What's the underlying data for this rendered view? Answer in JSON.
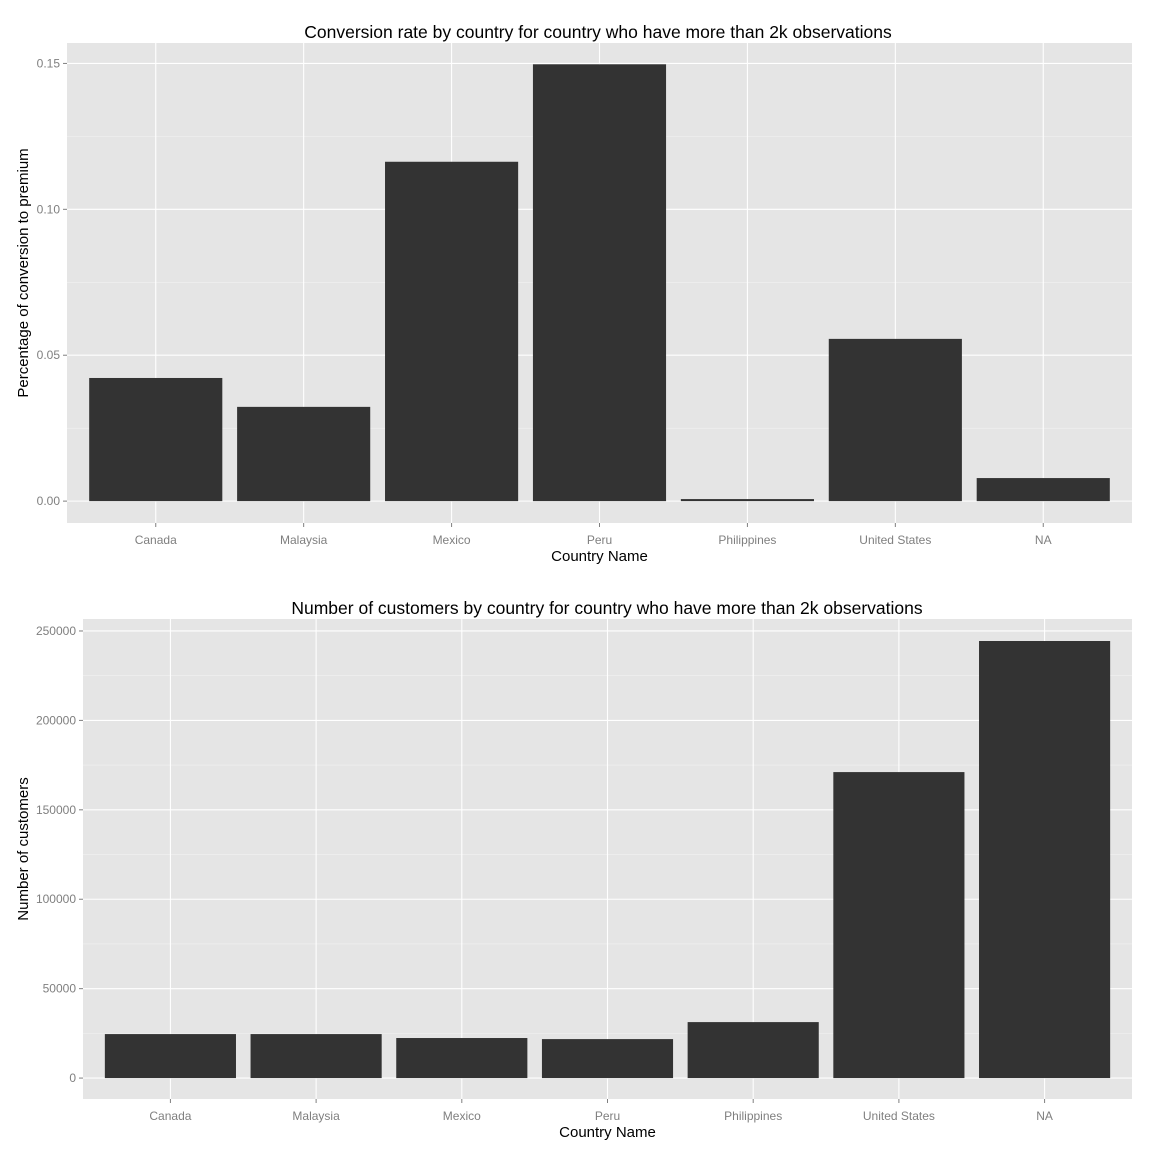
{
  "chart_data": [
    {
      "type": "bar",
      "title": "Conversion rate by country for country who have more than 2k observations",
      "xlabel": "Country Name",
      "ylabel": "Percentage of conversion to premium",
      "categories": [
        "Canada",
        "Malaysia",
        "Mexico",
        "Peru",
        "Philippines",
        "United States",
        "NA"
      ],
      "values": [
        0.0422,
        0.0323,
        0.1163,
        0.1497,
        0.0007,
        0.0556,
        0.0079
      ],
      "yticks": [
        0.0,
        0.05,
        0.1,
        0.15
      ],
      "ytick_labels": [
        "0.00",
        "0.05",
        "0.10",
        "0.15"
      ],
      "ylim": [
        -0.0075,
        0.157
      ],
      "grid": true,
      "bar_color": "#333333",
      "panel_color": "#e5e5e5"
    },
    {
      "type": "bar",
      "title": "Number of customers by country for country who have more than 2k observations",
      "xlabel": "Country Name",
      "ylabel": "Number of customers",
      "categories": [
        "Canada",
        "Malaysia",
        "Mexico",
        "Peru",
        "Philippines",
        "United States",
        "NA"
      ],
      "values": [
        24600,
        24600,
        22400,
        21800,
        31300,
        171100,
        244400
      ],
      "yticks": [
        0,
        50000,
        100000,
        150000,
        200000,
        250000
      ],
      "ytick_labels": [
        "0",
        "50000",
        "100000",
        "150000",
        "200000",
        "250000"
      ],
      "ylim": [
        -11700,
        256700
      ],
      "grid": true,
      "bar_color": "#333333",
      "panel_color": "#e5e5e5"
    }
  ]
}
